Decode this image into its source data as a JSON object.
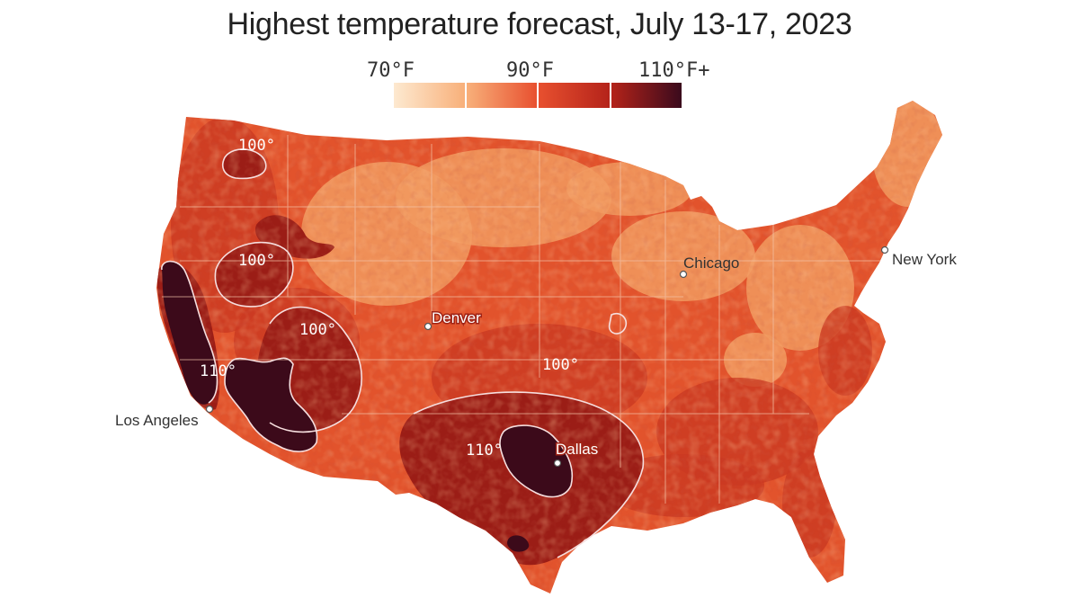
{
  "title": "Highest temperature forecast, July 13-17, 2023",
  "legend": {
    "labels": [
      "70°F",
      "90°F",
      "110°F+"
    ],
    "colors": [
      "#fde9d0",
      "#f8b07a",
      "#e8502f",
      "#b4231a",
      "#3a0a1c"
    ]
  },
  "map": {
    "colors": {
      "base": "#e2532c",
      "cool": "#f19a5f",
      "warm": "#cb3a22",
      "hot": "#9b1d16",
      "extreme": "#3c0a1a",
      "contour": "#f6dede",
      "state_lines": "#f3c3a8"
    },
    "cities": [
      {
        "name": "Los Angeles"
      },
      {
        "name": "Denver"
      },
      {
        "name": "Chicago"
      },
      {
        "name": "New York"
      },
      {
        "name": "Dallas"
      }
    ],
    "contour_labels": [
      "100°",
      "100°",
      "100°",
      "110°",
      "100°",
      "110°"
    ]
  }
}
